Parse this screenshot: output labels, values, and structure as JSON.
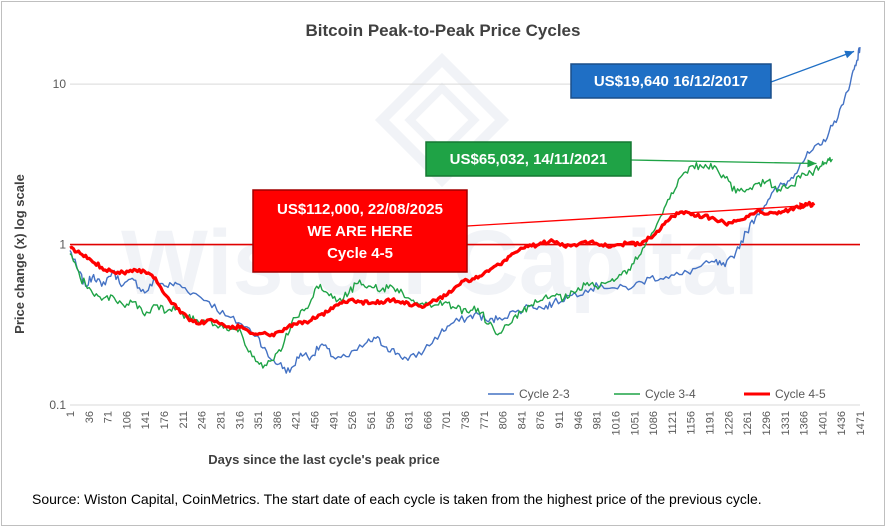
{
  "chart_data": {
    "type": "line",
    "title": "Bitcoin Peak-to-Peak Price Cycles",
    "xlabel": "Days since the last cycle's peak price",
    "ylabel": "Price change (x) log scale",
    "yscale": "log",
    "ylim": [
      0.1,
      20
    ],
    "xlim": [
      1,
      1471
    ],
    "yticks": [
      {
        "value": 0.1,
        "label": "0.1"
      },
      {
        "value": 1,
        "label": "1"
      },
      {
        "value": 10,
        "label": "10"
      }
    ],
    "xticks": [
      "1",
      "36",
      "71",
      "106",
      "141",
      "176",
      "211",
      "246",
      "281",
      "316",
      "351",
      "386",
      "421",
      "456",
      "491",
      "526",
      "561",
      "596",
      "631",
      "666",
      "701",
      "736",
      "771",
      "806",
      "841",
      "876",
      "911",
      "946",
      "981",
      "1016",
      "1051",
      "1086",
      "1121",
      "1156",
      "1191",
      "1226",
      "1261",
      "1296",
      "1331",
      "1366",
      "1401",
      "1436",
      "1471"
    ],
    "reference_line": {
      "y": 1,
      "color": "#e00000"
    },
    "series": [
      {
        "name": "Cycle 2-3",
        "color": "#4472c4",
        "width": 1.4,
        "points": [
          [
            1,
            0.92
          ],
          [
            15,
            0.7
          ],
          [
            30,
            0.55
          ],
          [
            45,
            0.65
          ],
          [
            60,
            0.55
          ],
          [
            80,
            0.68
          ],
          [
            100,
            0.56
          ],
          [
            120,
            0.6
          ],
          [
            140,
            0.5
          ],
          [
            160,
            0.6
          ],
          [
            180,
            0.55
          ],
          [
            200,
            0.57
          ],
          [
            230,
            0.5
          ],
          [
            260,
            0.44
          ],
          [
            290,
            0.36
          ],
          [
            320,
            0.32
          ],
          [
            350,
            0.27
          ],
          [
            370,
            0.2
          ],
          [
            390,
            0.18
          ],
          [
            410,
            0.16
          ],
          [
            430,
            0.21
          ],
          [
            450,
            0.2
          ],
          [
            470,
            0.24
          ],
          [
            490,
            0.2
          ],
          [
            520,
            0.2
          ],
          [
            550,
            0.24
          ],
          [
            570,
            0.26
          ],
          [
            590,
            0.23
          ],
          [
            610,
            0.21
          ],
          [
            630,
            0.19
          ],
          [
            660,
            0.22
          ],
          [
            690,
            0.28
          ],
          [
            710,
            0.32
          ],
          [
            740,
            0.35
          ],
          [
            760,
            0.37
          ],
          [
            780,
            0.33
          ],
          [
            800,
            0.35
          ],
          [
            830,
            0.38
          ],
          [
            860,
            0.42
          ],
          [
            880,
            0.4
          ],
          [
            900,
            0.43
          ],
          [
            930,
            0.48
          ],
          [
            960,
            0.52
          ],
          [
            990,
            0.56
          ],
          [
            1020,
            0.53
          ],
          [
            1050,
            0.55
          ],
          [
            1080,
            0.62
          ],
          [
            1110,
            0.63
          ],
          [
            1140,
            0.65
          ],
          [
            1170,
            0.72
          ],
          [
            1200,
            0.78
          ],
          [
            1220,
            0.73
          ],
          [
            1240,
            0.9
          ],
          [
            1260,
            1.2
          ],
          [
            1280,
            1.55
          ],
          [
            1300,
            1.9
          ],
          [
            1320,
            2.3
          ],
          [
            1340,
            2.5
          ],
          [
            1360,
            3.2
          ],
          [
            1380,
            3.8
          ],
          [
            1400,
            4.2
          ],
          [
            1420,
            5.5
          ],
          [
            1440,
            7.5
          ],
          [
            1455,
            11
          ],
          [
            1465,
            14
          ],
          [
            1471,
            17
          ]
        ]
      },
      {
        "name": "Cycle 3-4",
        "color": "#1fa346",
        "width": 1.4,
        "points": [
          [
            1,
            0.88
          ],
          [
            20,
            0.62
          ],
          [
            40,
            0.52
          ],
          [
            60,
            0.45
          ],
          [
            80,
            0.48
          ],
          [
            100,
            0.42
          ],
          [
            120,
            0.44
          ],
          [
            140,
            0.36
          ],
          [
            160,
            0.42
          ],
          [
            180,
            0.38
          ],
          [
            200,
            0.4
          ],
          [
            220,
            0.35
          ],
          [
            240,
            0.33
          ],
          [
            260,
            0.34
          ],
          [
            280,
            0.31
          ],
          [
            300,
            0.3
          ],
          [
            320,
            0.28
          ],
          [
            340,
            0.2
          ],
          [
            360,
            0.17
          ],
          [
            380,
            0.19
          ],
          [
            400,
            0.25
          ],
          [
            420,
            0.35
          ],
          [
            440,
            0.4
          ],
          [
            460,
            0.55
          ],
          [
            480,
            0.5
          ],
          [
            500,
            0.45
          ],
          [
            520,
            0.5
          ],
          [
            540,
            0.6
          ],
          [
            560,
            0.55
          ],
          [
            580,
            0.52
          ],
          [
            600,
            0.55
          ],
          [
            620,
            0.5
          ],
          [
            640,
            0.45
          ],
          [
            660,
            0.42
          ],
          [
            680,
            0.42
          ],
          [
            700,
            0.44
          ],
          [
            720,
            0.4
          ],
          [
            740,
            0.38
          ],
          [
            760,
            0.4
          ],
          [
            780,
            0.32
          ],
          [
            800,
            0.28
          ],
          [
            820,
            0.32
          ],
          [
            840,
            0.38
          ],
          [
            860,
            0.42
          ],
          [
            880,
            0.45
          ],
          [
            900,
            0.48
          ],
          [
            920,
            0.46
          ],
          [
            940,
            0.5
          ],
          [
            960,
            0.56
          ],
          [
            980,
            0.55
          ],
          [
            1000,
            0.58
          ],
          [
            1020,
            0.62
          ],
          [
            1040,
            0.7
          ],
          [
            1060,
            0.85
          ],
          [
            1080,
            1.1
          ],
          [
            1100,
            1.5
          ],
          [
            1120,
            2.1
          ],
          [
            1140,
            2.7
          ],
          [
            1160,
            3.1
          ],
          [
            1180,
            3.0
          ],
          [
            1200,
            3.1
          ],
          [
            1220,
            2.6
          ],
          [
            1240,
            2.1
          ],
          [
            1260,
            2.2
          ],
          [
            1280,
            2.4
          ],
          [
            1300,
            2.5
          ],
          [
            1320,
            2.2
          ],
          [
            1340,
            2.3
          ],
          [
            1360,
            2.6
          ],
          [
            1380,
            2.8
          ],
          [
            1400,
            3.1
          ],
          [
            1410,
            3.3
          ],
          [
            1420,
            3.4
          ]
        ]
      },
      {
        "name": "Cycle 4-5",
        "color": "#ff0000",
        "width": 3.2,
        "points": [
          [
            1,
            0.95
          ],
          [
            20,
            0.88
          ],
          [
            40,
            0.8
          ],
          [
            60,
            0.72
          ],
          [
            80,
            0.68
          ],
          [
            100,
            0.67
          ],
          [
            120,
            0.7
          ],
          [
            140,
            0.68
          ],
          [
            160,
            0.62
          ],
          [
            180,
            0.48
          ],
          [
            200,
            0.4
          ],
          [
            220,
            0.35
          ],
          [
            240,
            0.32
          ],
          [
            260,
            0.34
          ],
          [
            280,
            0.32
          ],
          [
            300,
            0.3
          ],
          [
            320,
            0.31
          ],
          [
            340,
            0.28
          ],
          [
            360,
            0.28
          ],
          [
            380,
            0.27
          ],
          [
            400,
            0.3
          ],
          [
            420,
            0.32
          ],
          [
            440,
            0.33
          ],
          [
            460,
            0.35
          ],
          [
            480,
            0.38
          ],
          [
            500,
            0.42
          ],
          [
            520,
            0.45
          ],
          [
            540,
            0.44
          ],
          [
            560,
            0.43
          ],
          [
            580,
            0.44
          ],
          [
            600,
            0.45
          ],
          [
            620,
            0.44
          ],
          [
            640,
            0.42
          ],
          [
            660,
            0.41
          ],
          [
            680,
            0.45
          ],
          [
            700,
            0.48
          ],
          [
            720,
            0.55
          ],
          [
            740,
            0.6
          ],
          [
            760,
            0.62
          ],
          [
            780,
            0.68
          ],
          [
            800,
            0.75
          ],
          [
            820,
            0.85
          ],
          [
            840,
            0.95
          ],
          [
            860,
            0.98
          ],
          [
            880,
            1.02
          ],
          [
            900,
            1.05
          ],
          [
            920,
            0.98
          ],
          [
            940,
            1.0
          ],
          [
            960,
            1.05
          ],
          [
            980,
            1.02
          ],
          [
            1000,
            0.98
          ],
          [
            1020,
            1.0
          ],
          [
            1040,
            1.02
          ],
          [
            1060,
            1.0
          ],
          [
            1080,
            1.1
          ],
          [
            1100,
            1.25
          ],
          [
            1120,
            1.5
          ],
          [
            1140,
            1.6
          ],
          [
            1160,
            1.55
          ],
          [
            1180,
            1.5
          ],
          [
            1200,
            1.45
          ],
          [
            1220,
            1.35
          ],
          [
            1240,
            1.4
          ],
          [
            1260,
            1.5
          ],
          [
            1280,
            1.62
          ],
          [
            1300,
            1.55
          ],
          [
            1320,
            1.6
          ],
          [
            1340,
            1.65
          ],
          [
            1360,
            1.72
          ],
          [
            1375,
            1.8
          ],
          [
            1385,
            1.75
          ]
        ]
      }
    ],
    "annotations": [
      {
        "id": "cycle-2-3-peak",
        "lines": [
          "US$19,640 16/12/2017"
        ],
        "bg": "#1f6fc5",
        "border": "#1a4f8a",
        "target": [
          1460,
          16
        ]
      },
      {
        "id": "cycle-3-4-peak",
        "lines": [
          "US$65,032, 14/11/2021"
        ],
        "bg": "#1fa346",
        "border": "#157832",
        "target": [
          1390,
          3.2
        ]
      },
      {
        "id": "cycle-4-5-current",
        "lines": [
          "US$112,000, 22/08/2025",
          "WE ARE HERE",
          "Cycle 4-5"
        ],
        "bg": "#ff0000",
        "border": "#a00000",
        "target": [
          1375,
          1.75
        ]
      }
    ]
  },
  "footer": {
    "source": "Source: Wiston Capital, CoinMetrics. The start date of each cycle is taken from the highest price of the previous cycle."
  },
  "watermark": {
    "text": "Wiston Capital"
  }
}
